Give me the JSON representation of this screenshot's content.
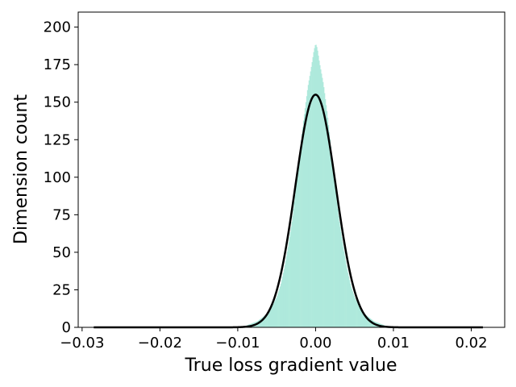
{
  "chart_data": {
    "type": "bar",
    "title": "",
    "xlabel": "True loss gradient value",
    "ylabel": "Dimension count",
    "xlim": [
      -0.0305,
      0.0243
    ],
    "ylim": [
      0,
      210
    ],
    "x_ticks": [
      -0.03,
      -0.02,
      -0.01,
      0.0,
      0.01,
      0.02
    ],
    "x_tick_labels": [
      "−0.03",
      "−0.02",
      "−0.01",
      "0.00",
      "0.01",
      "0.02"
    ],
    "y_ticks": [
      0,
      25,
      50,
      75,
      100,
      125,
      150,
      175,
      200
    ],
    "y_tick_labels": [
      "0",
      "25",
      "50",
      "75",
      "100",
      "125",
      "150",
      "175",
      "200"
    ],
    "grid": false,
    "legend": "none",
    "histogram": {
      "bin_width": 0.0001,
      "color": "#aee9dc",
      "bins": [
        {
          "x": -0.01,
          "y": 0
        },
        {
          "x": -0.009,
          "y": 1
        },
        {
          "x": -0.008,
          "y": 3
        },
        {
          "x": -0.0075,
          "y": 4
        },
        {
          "x": -0.007,
          "y": 6
        },
        {
          "x": -0.0065,
          "y": 8
        },
        {
          "x": -0.006,
          "y": 10
        },
        {
          "x": -0.0055,
          "y": 15
        },
        {
          "x": -0.005,
          "y": 20
        },
        {
          "x": -0.0045,
          "y": 28
        },
        {
          "x": -0.004,
          "y": 40
        },
        {
          "x": -0.0035,
          "y": 55
        },
        {
          "x": -0.003,
          "y": 72
        },
        {
          "x": -0.0025,
          "y": 95
        },
        {
          "x": -0.002,
          "y": 118
        },
        {
          "x": -0.0015,
          "y": 140
        },
        {
          "x": -0.001,
          "y": 160
        },
        {
          "x": -0.0005,
          "y": 175
        },
        {
          "x": -0.0002,
          "y": 185
        },
        {
          "x": 0.0,
          "y": 189
        },
        {
          "x": 0.0002,
          "y": 186
        },
        {
          "x": 0.0005,
          "y": 176
        },
        {
          "x": 0.001,
          "y": 162
        },
        {
          "x": 0.0015,
          "y": 142
        },
        {
          "x": 0.002,
          "y": 118
        },
        {
          "x": 0.0025,
          "y": 95
        },
        {
          "x": 0.003,
          "y": 72
        },
        {
          "x": 0.0035,
          "y": 55
        },
        {
          "x": 0.004,
          "y": 40
        },
        {
          "x": 0.0045,
          "y": 28
        },
        {
          "x": 0.005,
          "y": 20
        },
        {
          "x": 0.0055,
          "y": 15
        },
        {
          "x": 0.006,
          "y": 10
        },
        {
          "x": 0.0065,
          "y": 8
        },
        {
          "x": 0.007,
          "y": 6
        },
        {
          "x": 0.0075,
          "y": 4
        },
        {
          "x": 0.008,
          "y": 3
        },
        {
          "x": 0.009,
          "y": 1
        },
        {
          "x": 0.01,
          "y": 0
        }
      ]
    },
    "fit_curve": {
      "type": "gaussian",
      "mean": 0.0,
      "std": 0.0026,
      "peak": 155,
      "x_range": [
        -0.0285,
        0.0215
      ],
      "color": "#000000"
    }
  }
}
